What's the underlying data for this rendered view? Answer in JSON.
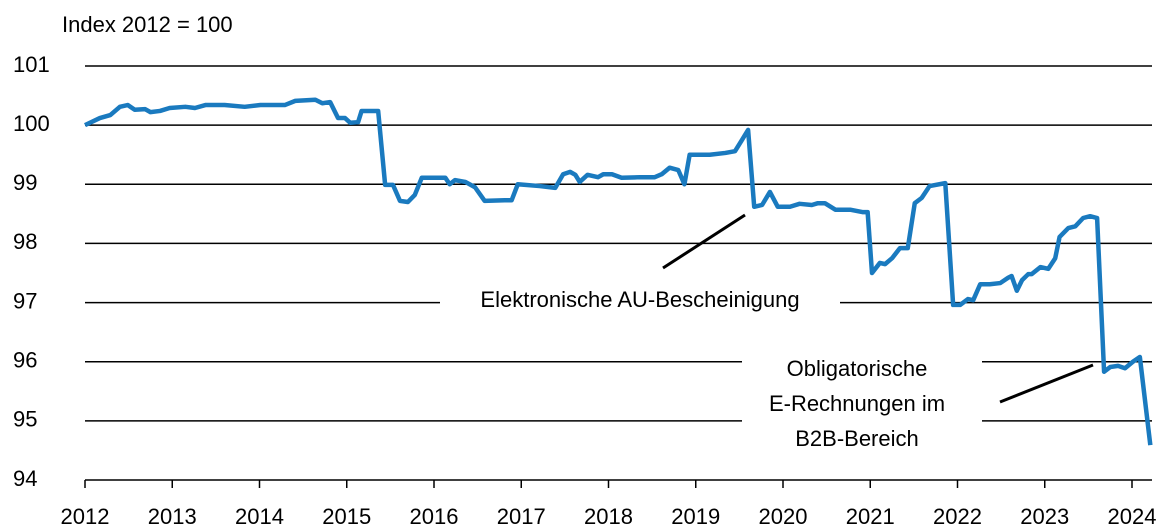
{
  "chart_data": {
    "type": "line",
    "y_axis_label": "Index 2012 = 100",
    "x": [
      2012.0,
      2012.17,
      2012.29,
      2012.4,
      2012.49,
      2012.57,
      2012.69,
      2012.75,
      2012.86,
      2012.97,
      2013.15,
      2013.26,
      2013.38,
      2013.6,
      2013.83,
      2014.01,
      2014.29,
      2014.41,
      2014.64,
      2014.72,
      2014.81,
      2014.9,
      2014.98,
      2015.04,
      2015.13,
      2015.17,
      2015.36,
      2015.44,
      2015.53,
      2015.61,
      2015.7,
      2015.78,
      2015.86,
      2016.13,
      2016.18,
      2016.24,
      2016.36,
      2016.47,
      2016.58,
      2016.81,
      2016.89,
      2016.96,
      2017.21,
      2017.39,
      2017.48,
      2017.56,
      2017.62,
      2017.67,
      2017.76,
      2017.88,
      2017.94,
      2018.04,
      2018.15,
      2018.36,
      2018.53,
      2018.61,
      2018.7,
      2018.8,
      2018.87,
      2018.93,
      2019.16,
      2019.34,
      2019.45,
      2019.53,
      2019.6,
      2019.67,
      2019.76,
      2019.85,
      2019.94,
      2020.08,
      2020.19,
      2020.33,
      2020.4,
      2020.48,
      2020.6,
      2020.77,
      2020.91,
      2020.97,
      2021.02,
      2021.11,
      2021.17,
      2021.25,
      2021.34,
      2021.43,
      2021.51,
      2021.59,
      2021.68,
      2021.86,
      2021.95,
      2022.03,
      2022.12,
      2022.18,
      2022.26,
      2022.37,
      2022.49,
      2022.58,
      2022.62,
      2022.68,
      2022.74,
      2022.81,
      2022.85,
      2022.95,
      2023.04,
      2023.12,
      2023.17,
      2023.27,
      2023.35,
      2023.44,
      2023.52,
      2023.6,
      2023.68,
      2023.75,
      2023.84,
      2023.92,
      2024.01,
      2024.09,
      2024.21
    ],
    "series": [
      {
        "color": "#1a7abf",
        "values": [
          100.0,
          100.12,
          100.17,
          100.31,
          100.34,
          100.26,
          100.27,
          100.22,
          100.24,
          100.29,
          100.31,
          100.29,
          100.34,
          100.34,
          100.31,
          100.34,
          100.34,
          100.41,
          100.43,
          100.37,
          100.39,
          100.12,
          100.12,
          100.04,
          100.05,
          100.24,
          100.24,
          98.99,
          98.99,
          98.72,
          98.7,
          98.82,
          99.11,
          99.11,
          99.0,
          99.07,
          99.04,
          98.95,
          98.72,
          98.73,
          98.73,
          99.0,
          98.97,
          98.94,
          99.17,
          99.21,
          99.16,
          99.04,
          99.16,
          99.12,
          99.17,
          99.17,
          99.11,
          99.12,
          99.12,
          99.17,
          99.28,
          99.24,
          99.0,
          99.5,
          99.5,
          99.53,
          99.56,
          99.75,
          99.92,
          98.62,
          98.65,
          98.87,
          98.62,
          98.62,
          98.67,
          98.65,
          98.68,
          98.68,
          98.57,
          98.57,
          98.53,
          98.53,
          97.5,
          97.67,
          97.65,
          97.75,
          97.92,
          97.92,
          98.68,
          98.77,
          98.97,
          99.02,
          96.96,
          96.96,
          97.06,
          97.04,
          97.31,
          97.31,
          97.33,
          97.42,
          97.45,
          97.2,
          97.38,
          97.48,
          97.48,
          97.6,
          97.57,
          97.75,
          98.11,
          98.26,
          98.29,
          98.43,
          98.46,
          98.43,
          95.83,
          95.91,
          95.93,
          95.89,
          96.0,
          96.08,
          94.59
        ]
      }
    ],
    "xlim": [
      2012,
      2024.25
    ],
    "xticks": [
      2012,
      2013,
      2014,
      2015,
      2016,
      2017,
      2018,
      2019,
      2020,
      2021,
      2022,
      2023,
      2024
    ],
    "ylim": [
      94,
      101
    ],
    "yticks": [
      94,
      95,
      96,
      97,
      98,
      99,
      100,
      101
    ],
    "grid": true,
    "annotations": [
      {
        "text": [
          "Elektronische AU-Bescheinigung"
        ]
      },
      {
        "text": [
          "Obligatorische",
          "E-Rechnungen im",
          "B2B-Bereich"
        ]
      }
    ]
  }
}
